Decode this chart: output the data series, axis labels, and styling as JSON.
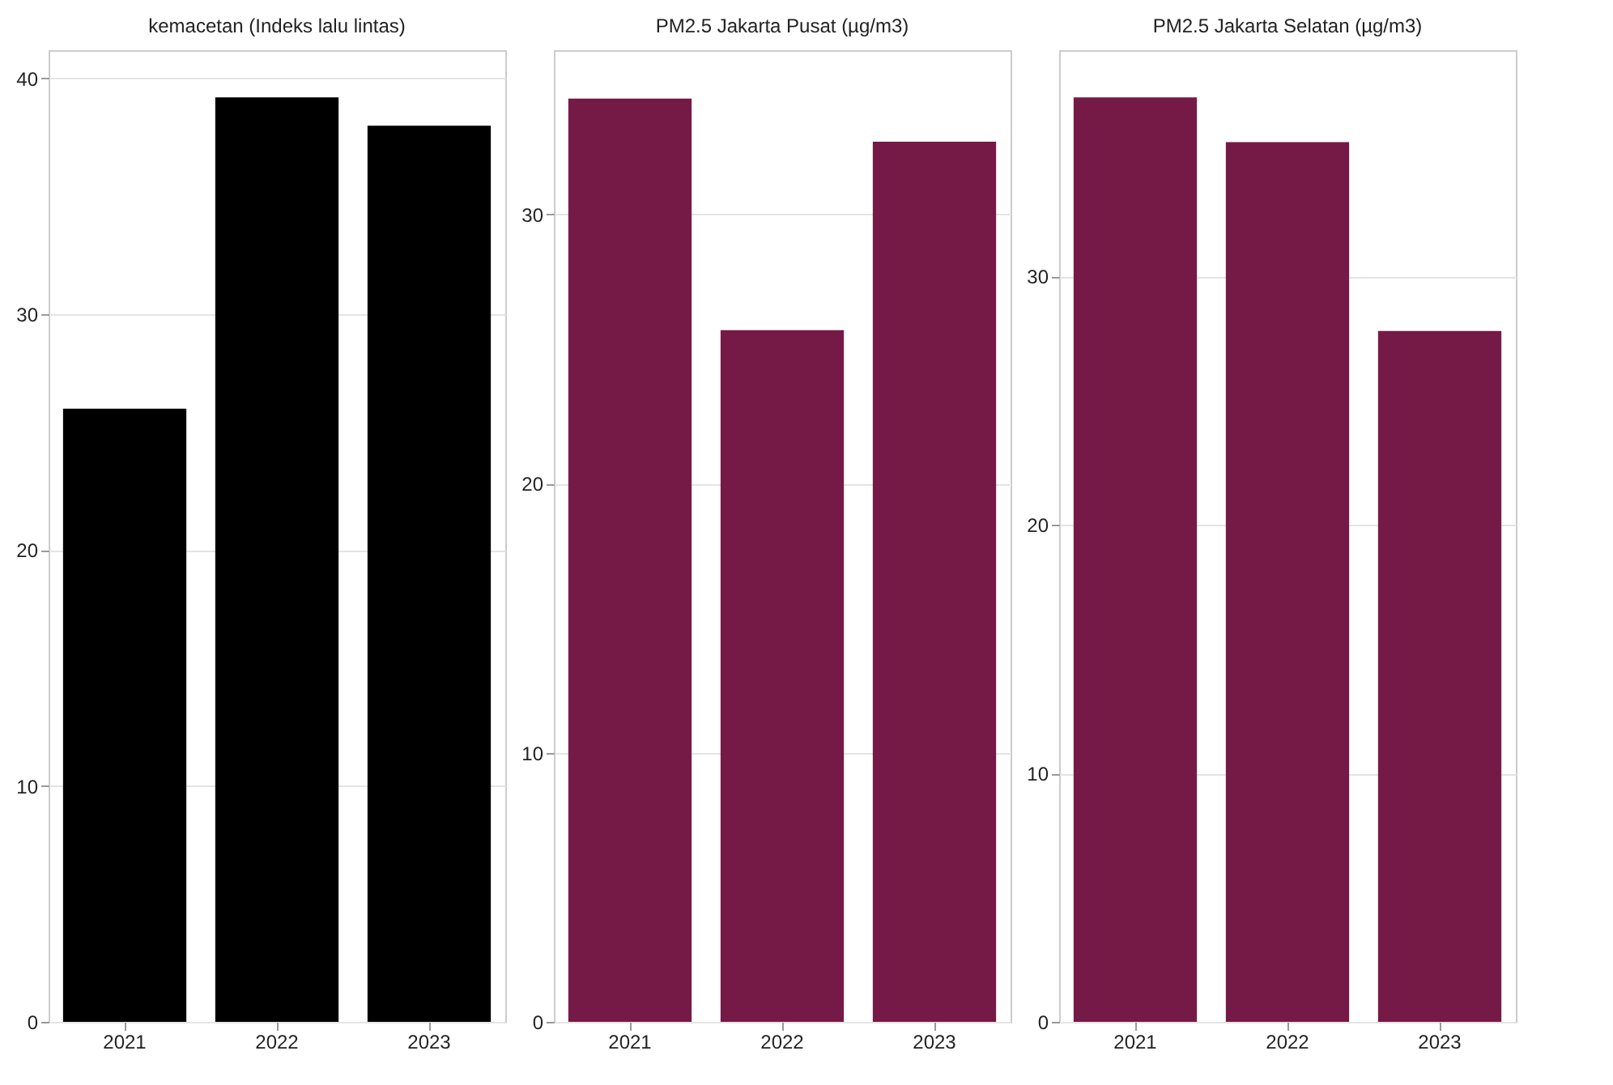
{
  "chart_data": [
    {
      "type": "bar",
      "title": "kemacetan (Indeks lalu lintas)",
      "categories": [
        "2021",
        "2022",
        "2023"
      ],
      "values": [
        26,
        39.2,
        38
      ],
      "color": "#000000",
      "ylim": [
        0,
        41.2
      ],
      "yticks": [
        0,
        10,
        20,
        30,
        40
      ],
      "grid": "y"
    },
    {
      "type": "bar",
      "title": "PM2.5 Jakarta Pusat (µg/m3)",
      "categories": [
        "2021",
        "2022",
        "2023"
      ],
      "values": [
        34.3,
        25.7,
        32.7
      ],
      "color": "#751a46",
      "ylim": [
        0,
        36.1
      ],
      "yticks": [
        0,
        10,
        20,
        30
      ],
      "grid": "y"
    },
    {
      "type": "bar",
      "title": "PM2.5 Jakarta Selatan (µg/m3)",
      "categories": [
        "2021",
        "2022",
        "2023"
      ],
      "values": [
        37.2,
        35.4,
        27.8
      ],
      "color": "#751a46",
      "ylim": [
        0,
        39.1
      ],
      "yticks": [
        0,
        10,
        20,
        30
      ],
      "grid": "y"
    }
  ]
}
